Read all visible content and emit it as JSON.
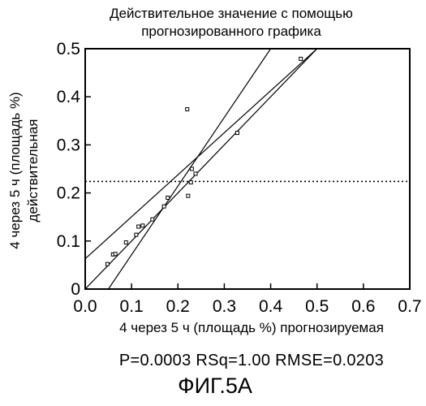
{
  "chart_data": {
    "type": "scatter",
    "title_lines": [
      "Действительное значение с помощью",
      "прогнозированного графика"
    ],
    "ylabel_lines": [
      "4 через 5 ч (площадь %)",
      "действительная"
    ],
    "xlabel": "4 через 5 ч (площадь %) прогнозируемая",
    "xlim": [
      0.0,
      0.7
    ],
    "ylim": [
      0.0,
      0.5
    ],
    "x_ticks": [
      "0.0",
      "0.1",
      "0.2",
      "0.3",
      "0.4",
      "0.5",
      "0.6",
      "0.7"
    ],
    "y_ticks": [
      "0",
      "0.1",
      "0.2",
      "0.3",
      "0.4",
      "0.5"
    ],
    "points": [
      {
        "x": 0.048,
        "y": 0.052
      },
      {
        "x": 0.06,
        "y": 0.072
      },
      {
        "x": 0.065,
        "y": 0.073
      },
      {
        "x": 0.088,
        "y": 0.097
      },
      {
        "x": 0.11,
        "y": 0.113
      },
      {
        "x": 0.115,
        "y": 0.13
      },
      {
        "x": 0.124,
        "y": 0.132
      },
      {
        "x": 0.145,
        "y": 0.145
      },
      {
        "x": 0.17,
        "y": 0.172
      },
      {
        "x": 0.178,
        "y": 0.19
      },
      {
        "x": 0.22,
        "y": 0.374
      },
      {
        "x": 0.222,
        "y": 0.194
      },
      {
        "x": 0.228,
        "y": 0.222
      },
      {
        "x": 0.23,
        "y": 0.25
      },
      {
        "x": 0.238,
        "y": 0.24
      },
      {
        "x": 0.328,
        "y": 0.325
      },
      {
        "x": 0.465,
        "y": 0.479
      }
    ],
    "fit_line": {
      "intercept": 0.0,
      "slope": 1.0
    },
    "confidence_curves": [
      {
        "x1": 0.05,
        "y1": 0.0,
        "x2": 0.4,
        "y2": 0.5
      },
      {
        "x1": 0.0,
        "y1": 0.063,
        "x2": 0.5,
        "y2": 0.5
      }
    ],
    "mean_line_y": 0.224,
    "stats_text": "P=0.0003  RSq=1.00  RMSE=0.0203",
    "figure_label": "ФИГ.5А"
  }
}
